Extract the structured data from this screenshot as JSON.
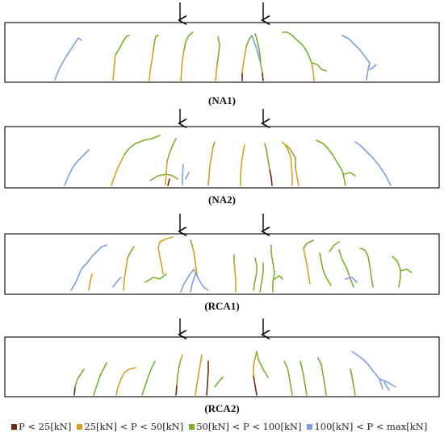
{
  "beams": [
    {
      "label": "(NA1)"
    },
    {
      "label": "(NA2)"
    },
    {
      "label": "(RCA1)"
    },
    {
      "label": "(RCA2)"
    }
  ],
  "legend": [
    {
      "text": "P < 25[kN]",
      "color": "#6b2a10"
    },
    {
      "text": "25[kN] < P < 50[kN]",
      "color": "#d6a020"
    },
    {
      "text": "50[kN] < P < 100[kN]",
      "color": "#7ab02c"
    },
    {
      "text": "100[kN] < P < max[kN]",
      "color": "#7e9ee0"
    }
  ]
}
